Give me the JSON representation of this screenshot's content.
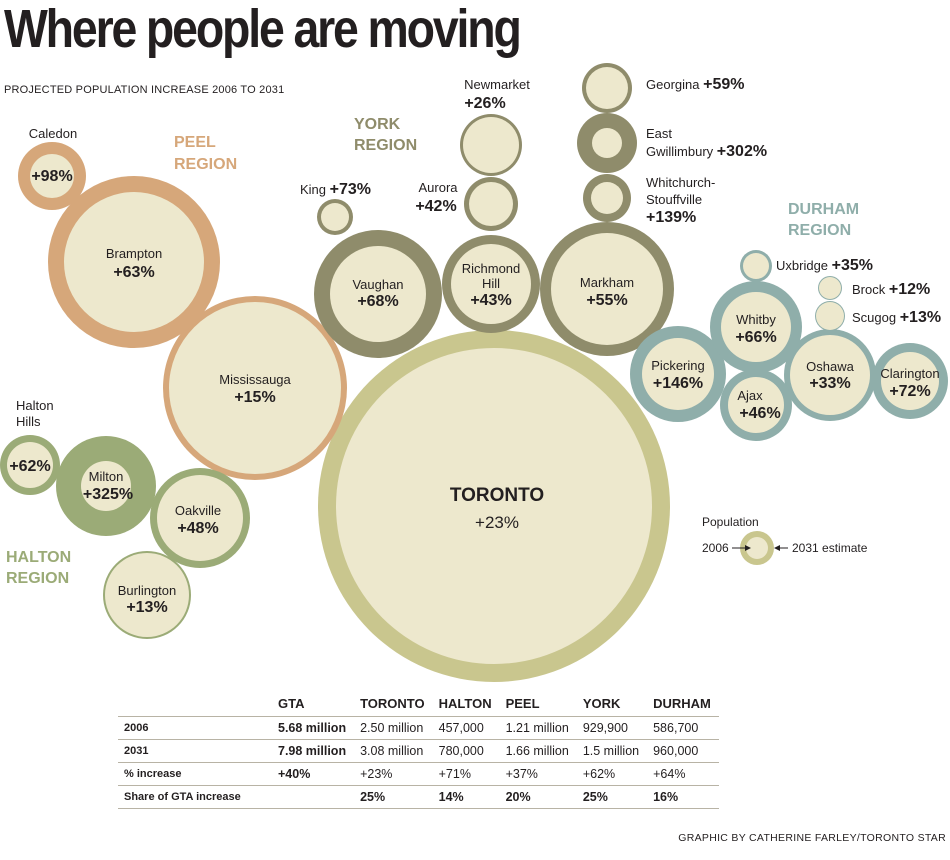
{
  "title": "Where people are moving",
  "subtitle": "PROJECTED POPULATION INCREASE 2006 TO 2031",
  "chart_data": {
    "type": "bubble",
    "regions": [
      {
        "id": "peel",
        "name": "PEEL REGION",
        "color": "#d6a77a"
      },
      {
        "id": "york",
        "name": "YORK REGION",
        "color": "#8f8c6b"
      },
      {
        "id": "durham",
        "name": "DURHAM REGION",
        "color": "#8faeaa"
      },
      {
        "id": "halton",
        "name": "HALTON REGION",
        "color": "#9bab77"
      },
      {
        "id": "toronto",
        "name": "TORONTO",
        "color": "#c9c68e"
      }
    ],
    "municipalities": [
      {
        "name": "Caledon",
        "region": "peel",
        "increase_pct": 98,
        "label": "+98%"
      },
      {
        "name": "Brampton",
        "region": "peel",
        "increase_pct": 63,
        "label": "+63%"
      },
      {
        "name": "Mississauga",
        "region": "peel",
        "increase_pct": 15,
        "label": "+15%"
      },
      {
        "name": "King",
        "region": "york",
        "increase_pct": 73,
        "label": "+73%"
      },
      {
        "name": "Vaughan",
        "region": "york",
        "increase_pct": 68,
        "label": "+68%"
      },
      {
        "name": "Newmarket",
        "region": "york",
        "increase_pct": 26,
        "label": "+26%"
      },
      {
        "name": "Aurora",
        "region": "york",
        "increase_pct": 42,
        "label": "+42%"
      },
      {
        "name": "Richmond Hill",
        "region": "york",
        "increase_pct": 43,
        "label": "+43%"
      },
      {
        "name": "Georgina",
        "region": "york",
        "increase_pct": 59,
        "label": "+59%"
      },
      {
        "name": "East Gwillimbury",
        "region": "york",
        "increase_pct": 302,
        "label": "+302%"
      },
      {
        "name": "Whitchurch-Stouffville",
        "region": "york",
        "increase_pct": 139,
        "label": "+139%"
      },
      {
        "name": "Markham",
        "region": "york",
        "increase_pct": 55,
        "label": "+55%"
      },
      {
        "name": "Uxbridge",
        "region": "durham",
        "increase_pct": 35,
        "label": "+35%"
      },
      {
        "name": "Brock",
        "region": "durham",
        "increase_pct": 12,
        "label": "+12%"
      },
      {
        "name": "Scugog",
        "region": "durham",
        "increase_pct": 13,
        "label": "+13%"
      },
      {
        "name": "Whitby",
        "region": "durham",
        "increase_pct": 66,
        "label": "+66%"
      },
      {
        "name": "Pickering",
        "region": "durham",
        "increase_pct": 146,
        "label": "+146%"
      },
      {
        "name": "Ajax",
        "region": "durham",
        "increase_pct": 46,
        "label": "+46%"
      },
      {
        "name": "Oshawa",
        "region": "durham",
        "increase_pct": 33,
        "label": "+33%"
      },
      {
        "name": "Clarington",
        "region": "durham",
        "increase_pct": 72,
        "label": "+72%"
      },
      {
        "name": "Halton Hills",
        "region": "halton",
        "increase_pct": 62,
        "label": "+62%"
      },
      {
        "name": "Milton",
        "region": "halton",
        "increase_pct": 325,
        "label": "+325%"
      },
      {
        "name": "Oakville",
        "region": "halton",
        "increase_pct": 48,
        "label": "+48%"
      },
      {
        "name": "Burlington",
        "region": "halton",
        "increase_pct": 13,
        "label": "+13%"
      },
      {
        "name": "TORONTO",
        "region": "toronto",
        "increase_pct": 23,
        "label": "+23%"
      }
    ],
    "legend": {
      "title": "Population",
      "inner": "2006",
      "outer": "2031 estimate"
    },
    "table": {
      "columns": [
        "",
        "GTA",
        "TORONTO",
        "HALTON",
        "PEEL",
        "YORK",
        "DURHAM"
      ],
      "rows": [
        {
          "label": "2006",
          "values": [
            "5.68 million",
            "2.50 million",
            "457,000",
            "1.21 million",
            "929,900",
            "586,700"
          ]
        },
        {
          "label": "2031",
          "values": [
            "7.98 million",
            "3.08 million",
            "780,000",
            "1.66 million",
            "1.5 million",
            "960,000"
          ]
        },
        {
          "label": "% increase",
          "values": [
            "+40%",
            "+23%",
            "+71%",
            "+37%",
            "+62%",
            "+64%"
          ]
        },
        {
          "label": "Share of GTA increase",
          "values": [
            "",
            "25%",
            "14%",
            "20%",
            "25%",
            "16%"
          ]
        }
      ]
    }
  },
  "credit": "GRAPHIC BY CATHERINE FARLEY/TORONTO STAR"
}
